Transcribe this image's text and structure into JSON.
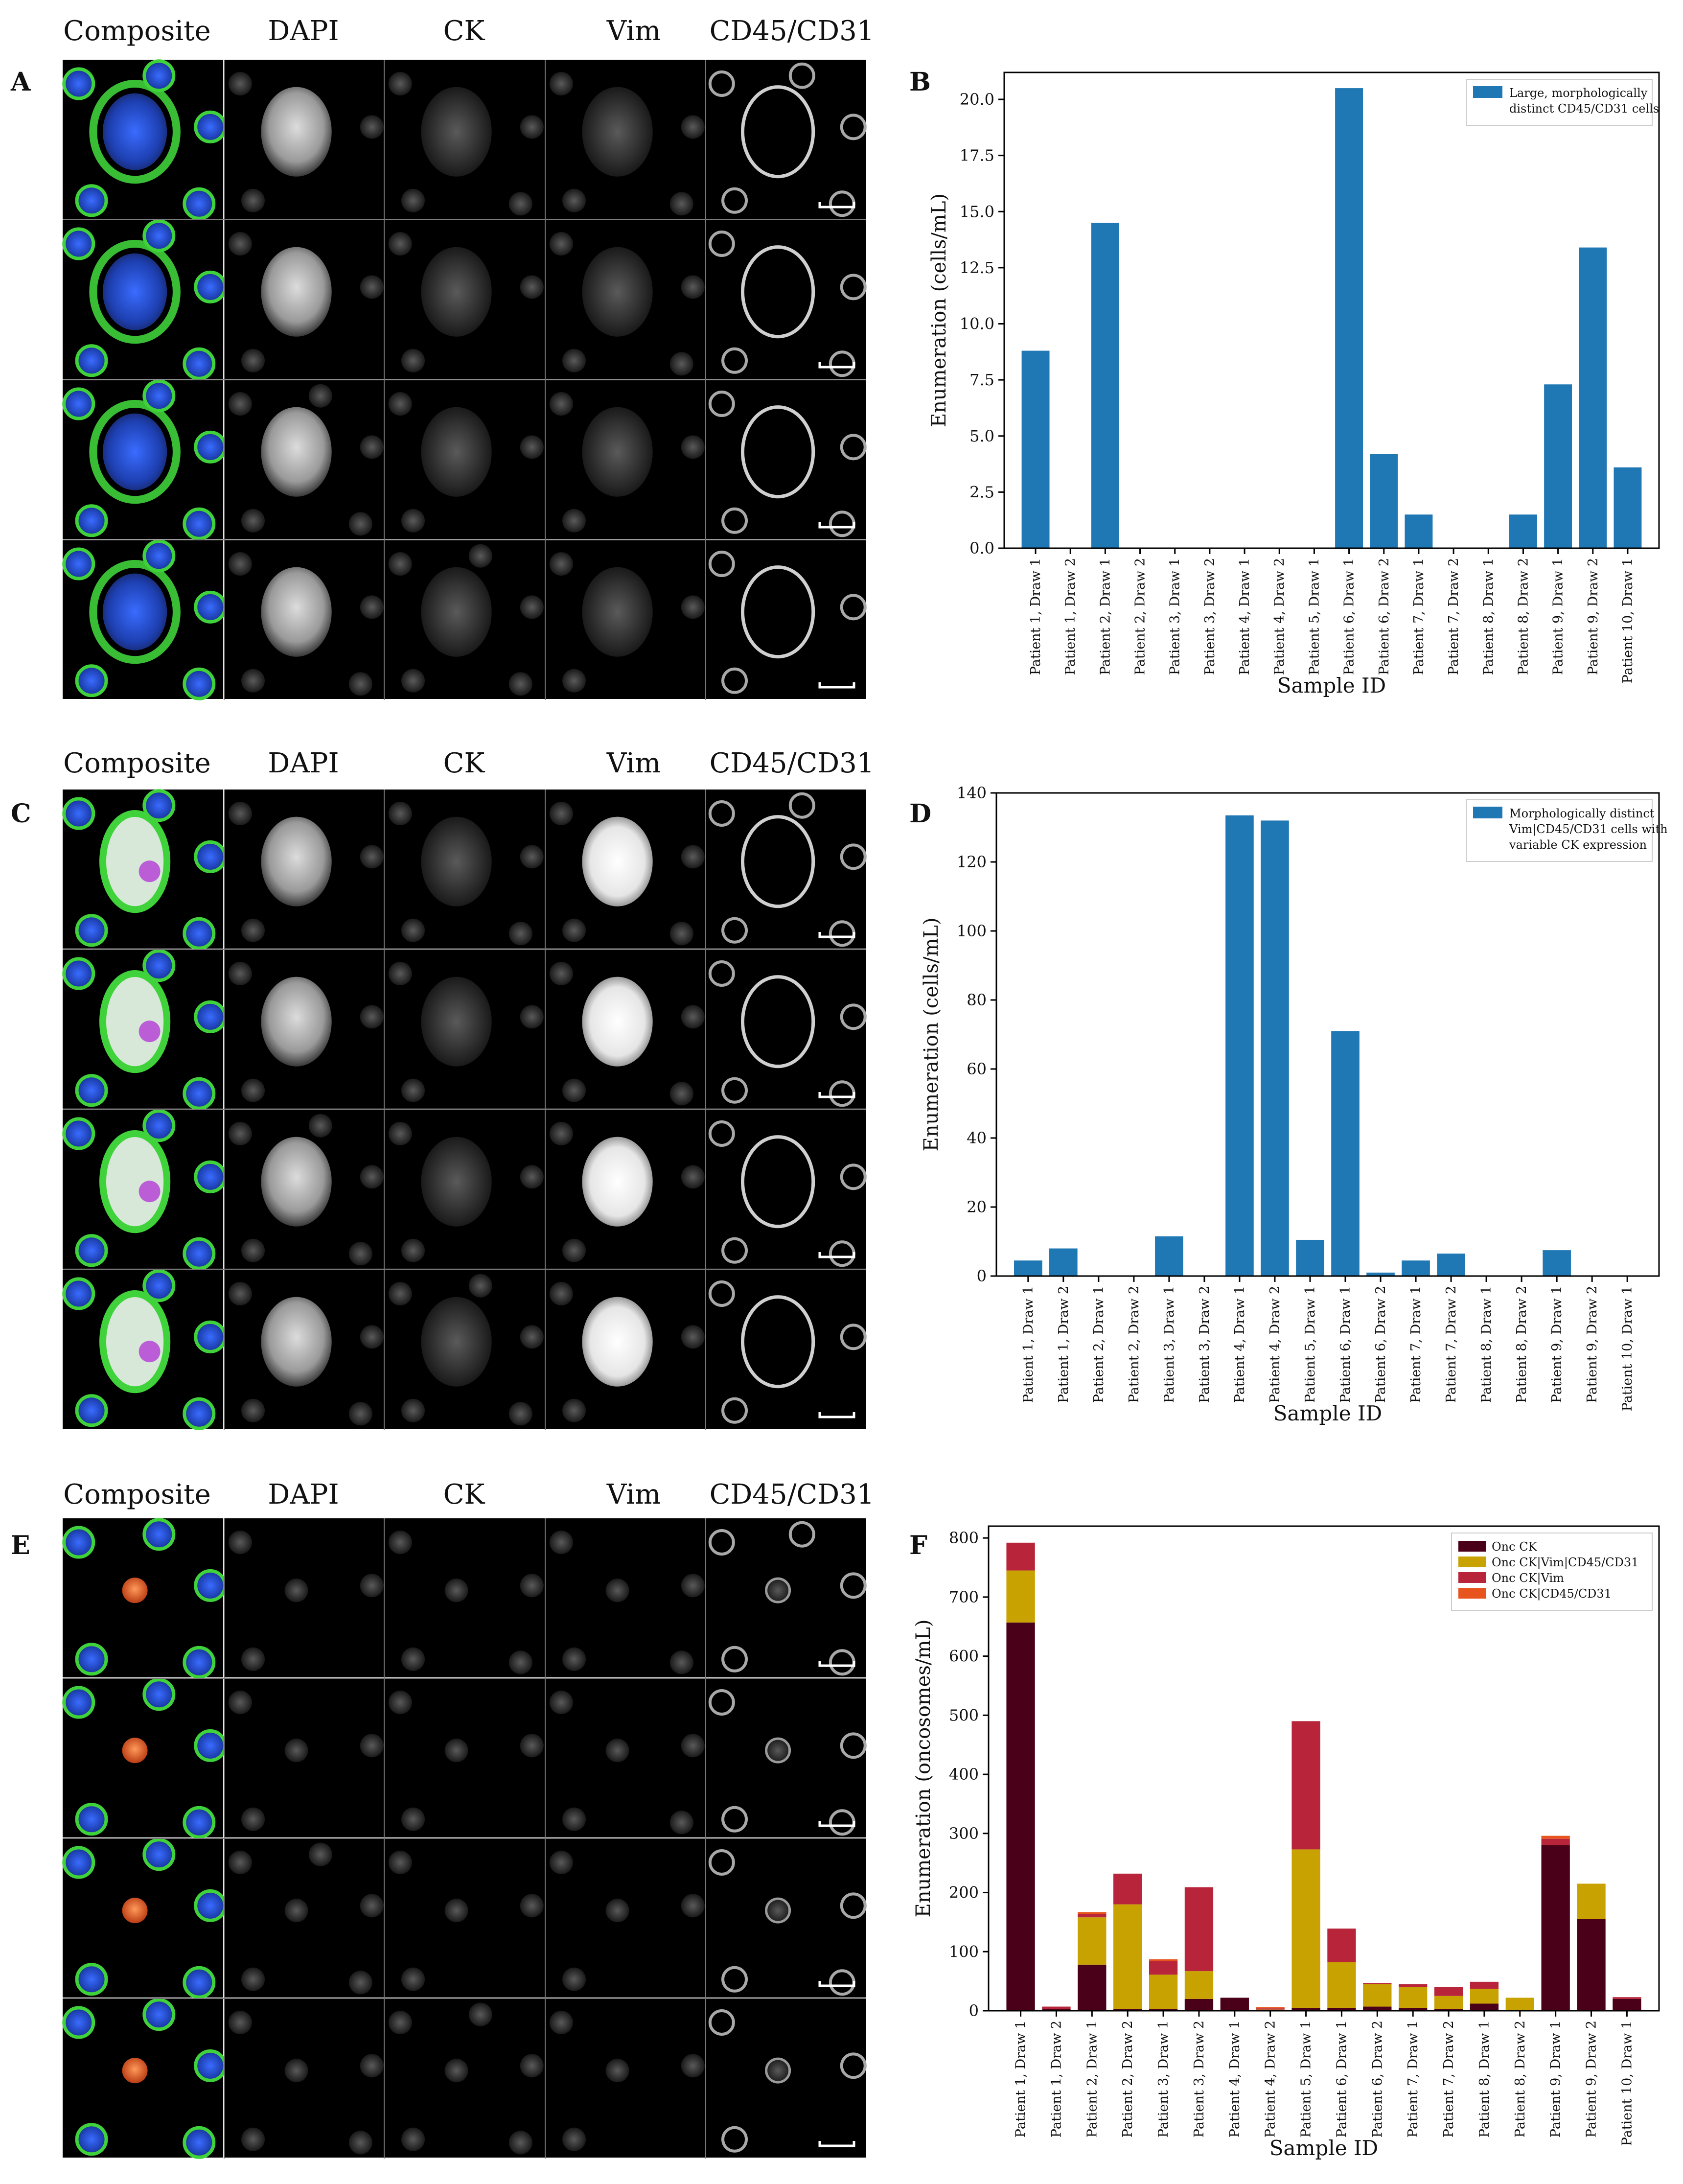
{
  "figure": {
    "channel_headers": [
      "Composite",
      "DAPI",
      "CK",
      "Vim",
      "CD45/CD31"
    ],
    "panel_letters": {
      "A": "A",
      "B": "B",
      "C": "C",
      "D": "D",
      "E": "E",
      "F": "F"
    },
    "channel_colors": {
      "composite_nucleus": "#2a55d8",
      "composite_membrane": "#3fd23a",
      "composite_onc": "#e0602c",
      "composite_vim": "#b33ad6",
      "grayscale": "#c8c8c8"
    }
  },
  "chart_data": [
    {
      "type": "bar",
      "panel": "B",
      "categories": [
        "Patient 1, Draw 1",
        "Patient 1, Draw 2",
        "Patient 2, Draw 1",
        "Patient 2, Draw 2",
        "Patient 3, Draw 1",
        "Patient 3, Draw 2",
        "Patient 4, Draw 1",
        "Patient 4, Draw 2",
        "Patient 5, Draw 1",
        "Patient 6, Draw 1",
        "Patient 6, Draw 2",
        "Patient 7, Draw 1",
        "Patient 7, Draw 2",
        "Patient 8, Draw 1",
        "Patient 8, Draw 2",
        "Patient 9, Draw 1",
        "Patient 9, Draw 2",
        "Patient 10, Draw 1"
      ],
      "series": [
        {
          "name": "Large, morphologically distinct CD45/CD31 cells",
          "color": "#1f77b4",
          "values": [
            8.8,
            0,
            14.5,
            0,
            0,
            0,
            0,
            0,
            0,
            20.5,
            4.2,
            1.5,
            0,
            0,
            1.5,
            7.3,
            13.4,
            3.6
          ]
        }
      ],
      "legend_lines": [
        "Large, morphologically",
        "distinct CD45/CD31 cells"
      ],
      "xlabel": "Sample ID",
      "ylabel": "Enumeration (cells/mL)",
      "ylim": [
        0,
        21.2
      ],
      "yticks": [
        0.0,
        2.5,
        5.0,
        7.5,
        10.0,
        12.5,
        15.0,
        17.5,
        20.0
      ],
      "ytick_labels": [
        "0.0",
        "2.5",
        "5.0",
        "7.5",
        "10.0",
        "12.5",
        "15.0",
        "17.5",
        "20.0"
      ],
      "legend_position": "top-right",
      "grid": false
    },
    {
      "type": "bar",
      "panel": "D",
      "categories": [
        "Patient 1, Draw 1",
        "Patient 1, Draw 2",
        "Patient 2, Draw 1",
        "Patient 2, Draw 2",
        "Patient 3, Draw 1",
        "Patient 3, Draw 2",
        "Patient 4, Draw 1",
        "Patient 4, Draw 2",
        "Patient 5, Draw 1",
        "Patient 6, Draw 1",
        "Patient 6, Draw 2",
        "Patient 7, Draw 1",
        "Patient 7, Draw 2",
        "Patient 8, Draw 1",
        "Patient 8, Draw 2",
        "Patient 9, Draw 1",
        "Patient 9, Draw 2",
        "Patient 10, Draw 1"
      ],
      "series": [
        {
          "name": "Morphologically distinct Vim|CD45/CD31 cells with variable CK expression",
          "color": "#1f77b4",
          "values": [
            4.5,
            8,
            0,
            0,
            11.5,
            0,
            133.5,
            132,
            10.5,
            71,
            1,
            4.5,
            6.5,
            0,
            0,
            7.5,
            0,
            0
          ]
        }
      ],
      "legend_lines": [
        "Morphologically distinct",
        "Vim|CD45/CD31 cells with",
        "variable CK expression"
      ],
      "xlabel": "Sample ID",
      "ylabel": "Enumeration (cells/mL)",
      "ylim": [
        0,
        140
      ],
      "yticks": [
        0,
        20,
        40,
        60,
        80,
        100,
        120,
        140
      ],
      "ytick_labels": [
        "0",
        "20",
        "40",
        "60",
        "80",
        "100",
        "120",
        "140"
      ],
      "legend_position": "top-right",
      "grid": false
    },
    {
      "type": "bar",
      "stacked": true,
      "panel": "F",
      "categories": [
        "Patient 1, Draw 1",
        "Patient 1, Draw 2",
        "Patient 2, Draw 1",
        "Patient 2, Draw 2",
        "Patient 3, Draw 1",
        "Patient 3, Draw 2",
        "Patient 4, Draw 1",
        "Patient 4, Draw 2",
        "Patient 5, Draw 1",
        "Patient 6, Draw 1",
        "Patient 6, Draw 2",
        "Patient 7, Draw 1",
        "Patient 7, Draw 2",
        "Patient 8, Draw 1",
        "Patient 8, Draw 2",
        "Patient 9, Draw 1",
        "Patient 9, Draw 2",
        "Patient 10, Draw 1"
      ],
      "series": [
        {
          "name": "Onc CK",
          "color": "#4a0019",
          "values": [
            657,
            3,
            78,
            3,
            3,
            20,
            22,
            0,
            5,
            5,
            7,
            5,
            3,
            12,
            0,
            280,
            155,
            20
          ]
        },
        {
          "name": "Onc CK|Vim|CD45/CD31",
          "color": "#c8a200",
          "values": [
            88,
            0,
            80,
            177,
            58,
            47,
            0,
            2,
            268,
            77,
            38,
            35,
            22,
            25,
            22,
            0,
            60,
            0
          ]
        },
        {
          "name": "Onc CK|Vim",
          "color": "#b8253a",
          "values": [
            47,
            4,
            6,
            52,
            23,
            142,
            0,
            2,
            217,
            57,
            2,
            5,
            15,
            12,
            0,
            11,
            0,
            3
          ]
        },
        {
          "name": "Onc CK|CD45/CD31",
          "color": "#e8541e",
          "values": [
            0,
            0,
            3,
            0,
            3,
            0,
            0,
            2,
            0,
            0,
            0,
            0,
            0,
            0,
            0,
            5,
            0,
            0
          ]
        }
      ],
      "xlabel": "Sample ID",
      "ylabel": "Enumeration (oncosomes/mL)",
      "ylim": [
        0,
        820
      ],
      "yticks": [
        0,
        100,
        200,
        300,
        400,
        500,
        600,
        700,
        800
      ],
      "ytick_labels": [
        "0",
        "100",
        "200",
        "300",
        "400",
        "500",
        "600",
        "700",
        "800"
      ],
      "legend_position": "top-right",
      "grid": false
    }
  ]
}
